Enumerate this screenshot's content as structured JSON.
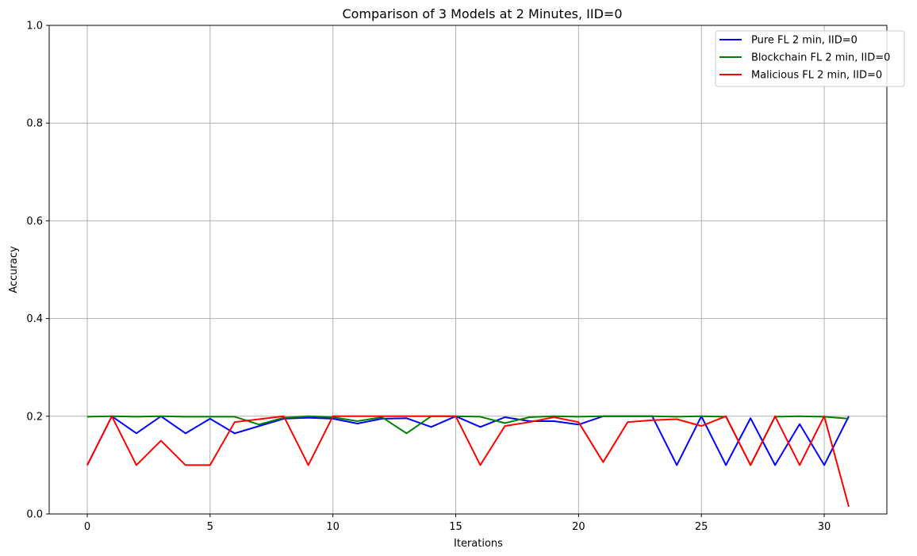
{
  "chart_data": {
    "type": "line",
    "title": "Comparison of 3 Models at 2 Minutes, IID=0",
    "xlabel": "Iterations",
    "ylabel": "Accuracy",
    "xlim": [
      -1.55,
      32.55
    ],
    "ylim": [
      0,
      1
    ],
    "xticks": [
      0,
      5,
      10,
      15,
      20,
      25,
      30
    ],
    "yticks": [
      0.0,
      0.2,
      0.4,
      0.6,
      0.8,
      1.0
    ],
    "xtick_labels": [
      "0",
      "5",
      "10",
      "15",
      "20",
      "25",
      "30"
    ],
    "ytick_labels": [
      "0.0",
      "0.2",
      "0.4",
      "0.6",
      "0.8",
      "1.0"
    ],
    "grid": true,
    "legend_position": "top-right",
    "x": [
      0,
      1,
      2,
      3,
      4,
      5,
      6,
      7,
      8,
      9,
      10,
      11,
      12,
      13,
      14,
      15,
      16,
      17,
      18,
      19,
      20,
      21,
      22,
      23,
      24,
      25,
      26,
      27,
      28,
      29,
      30,
      31
    ],
    "series": [
      {
        "name": "Pure FL 2 min, IID=0",
        "color": "#0000ff",
        "values": [
          0.1,
          0.2,
          0.165,
          0.2,
          0.165,
          0.195,
          0.165,
          0.18,
          0.195,
          0.197,
          0.195,
          0.185,
          0.195,
          0.196,
          0.178,
          0.2,
          0.178,
          0.198,
          0.19,
          0.19,
          0.183,
          0.2,
          0.2,
          0.2,
          0.1,
          0.2,
          0.1,
          0.196,
          0.1,
          0.184,
          0.1,
          0.2
        ]
      },
      {
        "name": "Blockchain FL 2 min, IID=0",
        "color": "#008000",
        "values": [
          0.199,
          0.2,
          0.199,
          0.2,
          0.199,
          0.199,
          0.199,
          0.183,
          0.197,
          0.2,
          0.198,
          0.19,
          0.198,
          0.165,
          0.2,
          0.2,
          0.199,
          0.186,
          0.198,
          0.2,
          0.199,
          0.2,
          0.2,
          0.2,
          0.199,
          0.2,
          0.199,
          0.1,
          0.199,
          0.2,
          0.199,
          0.195
        ]
      },
      {
        "name": "Malicious FL 2 min, IID=0",
        "color": "#ff0000",
        "values": [
          0.1,
          0.2,
          0.1,
          0.15,
          0.1,
          0.1,
          0.188,
          0.194,
          0.2,
          0.1,
          0.2,
          0.2,
          0.2,
          0.2,
          0.2,
          0.2,
          0.1,
          0.18,
          0.188,
          0.198,
          0.188,
          0.106,
          0.188,
          0.192,
          0.194,
          0.18,
          0.2,
          0.1,
          0.2,
          0.1,
          0.2,
          0.015
        ]
      }
    ]
  }
}
